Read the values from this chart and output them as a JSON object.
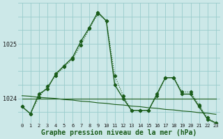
{
  "title": "Graphe pression niveau de la mer (hPa)",
  "background_color": "#cce8e8",
  "grid_color": "#99cccc",
  "line_color": "#1a5c1a",
  "hours": [
    0,
    1,
    2,
    3,
    4,
    5,
    6,
    7,
    8,
    9,
    10,
    11,
    12,
    13,
    14,
    15,
    16,
    17,
    18,
    19,
    20,
    21,
    22,
    23
  ],
  "series_dotted": [
    1023.85,
    1023.72,
    1024.02,
    1024.22,
    1024.42,
    1024.58,
    1024.72,
    1024.98,
    1025.28,
    1025.55,
    1025.42,
    1024.42,
    1024.05,
    1023.78,
    1023.78,
    1023.78,
    1024.05,
    1024.38,
    1024.38,
    1024.12,
    1024.12,
    1023.88,
    1023.65,
    1023.55
  ],
  "series_main": [
    1023.85,
    1023.72,
    1024.08,
    1024.18,
    1024.45,
    1024.6,
    1024.75,
    1025.05,
    1025.3,
    1025.58,
    1025.42,
    1024.25,
    1024.0,
    1023.78,
    1023.78,
    1023.78,
    1024.08,
    1024.38,
    1024.38,
    1024.08,
    1024.08,
    1023.85,
    1023.62,
    1023.55
  ],
  "series_flat": [
    1024.0,
    1024.0,
    1024.0,
    1024.0,
    1024.0,
    1024.0,
    1024.0,
    1024.0,
    1024.0,
    1024.0,
    1024.0,
    1024.0,
    1024.0,
    1024.0,
    1024.0,
    1024.0,
    1024.0,
    1024.0,
    1024.0,
    1024.0,
    1024.0,
    1024.0,
    1024.0,
    1024.0
  ],
  "series_decline": [
    1024.05,
    1024.04,
    1024.02,
    1024.01,
    1024.0,
    1023.98,
    1023.97,
    1023.95,
    1023.94,
    1023.92,
    1023.91,
    1023.89,
    1023.88,
    1023.86,
    1023.85,
    1023.83,
    1023.82,
    1023.8,
    1023.79,
    1023.77,
    1023.76,
    1023.74,
    1023.73,
    1023.71
  ],
  "ylim": [
    1023.55,
    1025.75
  ],
  "yticks": [
    1024,
    1025
  ],
  "title_fontsize": 7,
  "xtick_fontsize": 5,
  "ytick_fontsize": 6
}
